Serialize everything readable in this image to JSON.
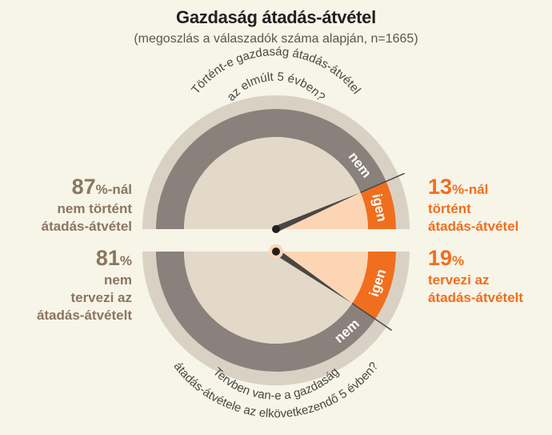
{
  "title": "Gazdaság átadás-átvétel",
  "subtitle": "(megoszlás a válaszadók száma alapján, n=1665)",
  "colors": {
    "background": "#f7f4e8",
    "ring_grey": "#8a817c",
    "outer_band": "#d9d2c4",
    "inner_beige": "#e2d9c9",
    "orange": "#ef6f1f",
    "peach": "#fcd5b5",
    "left_text": "#8b7660",
    "needle": "#4a4743"
  },
  "top": {
    "question_line1": "Történt-e gazdaság átadás-átvétel",
    "question_line2": "az elmúlt 5 évben?",
    "ring_label_no": "nem",
    "ring_label_yes": "igen",
    "left": {
      "pct": "87",
      "unit": "%-nál",
      "line2": "nem történt",
      "line3": "átadás-átvétel"
    },
    "right": {
      "pct": "13",
      "unit": "%-nál",
      "line2": "történt",
      "line3": "átadás-átvétel"
    }
  },
  "bottom": {
    "question_line1": "Tervben van-e a gazdaság",
    "question_line2": "átadás-átvétele az elkövetkezendő 5 évben?",
    "ring_label_no": "nem",
    "ring_label_yes": "igen",
    "left": {
      "pct": "81",
      "unit": "%",
      "line2": "nem",
      "line3": "tervezi az",
      "line4": "átadás-átvételt"
    },
    "right": {
      "pct": "19",
      "unit": "%",
      "line2": "tervezi az",
      "line3": "átadás-átvételt"
    }
  },
  "chart_data": [
    {
      "type": "pie",
      "title": "Történt-e gazdaság átadás-átvétel az elmúlt 5 évben?",
      "categories": [
        "nem",
        "igen"
      ],
      "values": [
        87,
        13
      ]
    },
    {
      "type": "pie",
      "title": "Tervben van-e a gazdaság átadás-átvétele az elkövetkezendő 5 évben?",
      "categories": [
        "nem",
        "igen"
      ],
      "values": [
        81,
        19
      ]
    }
  ]
}
